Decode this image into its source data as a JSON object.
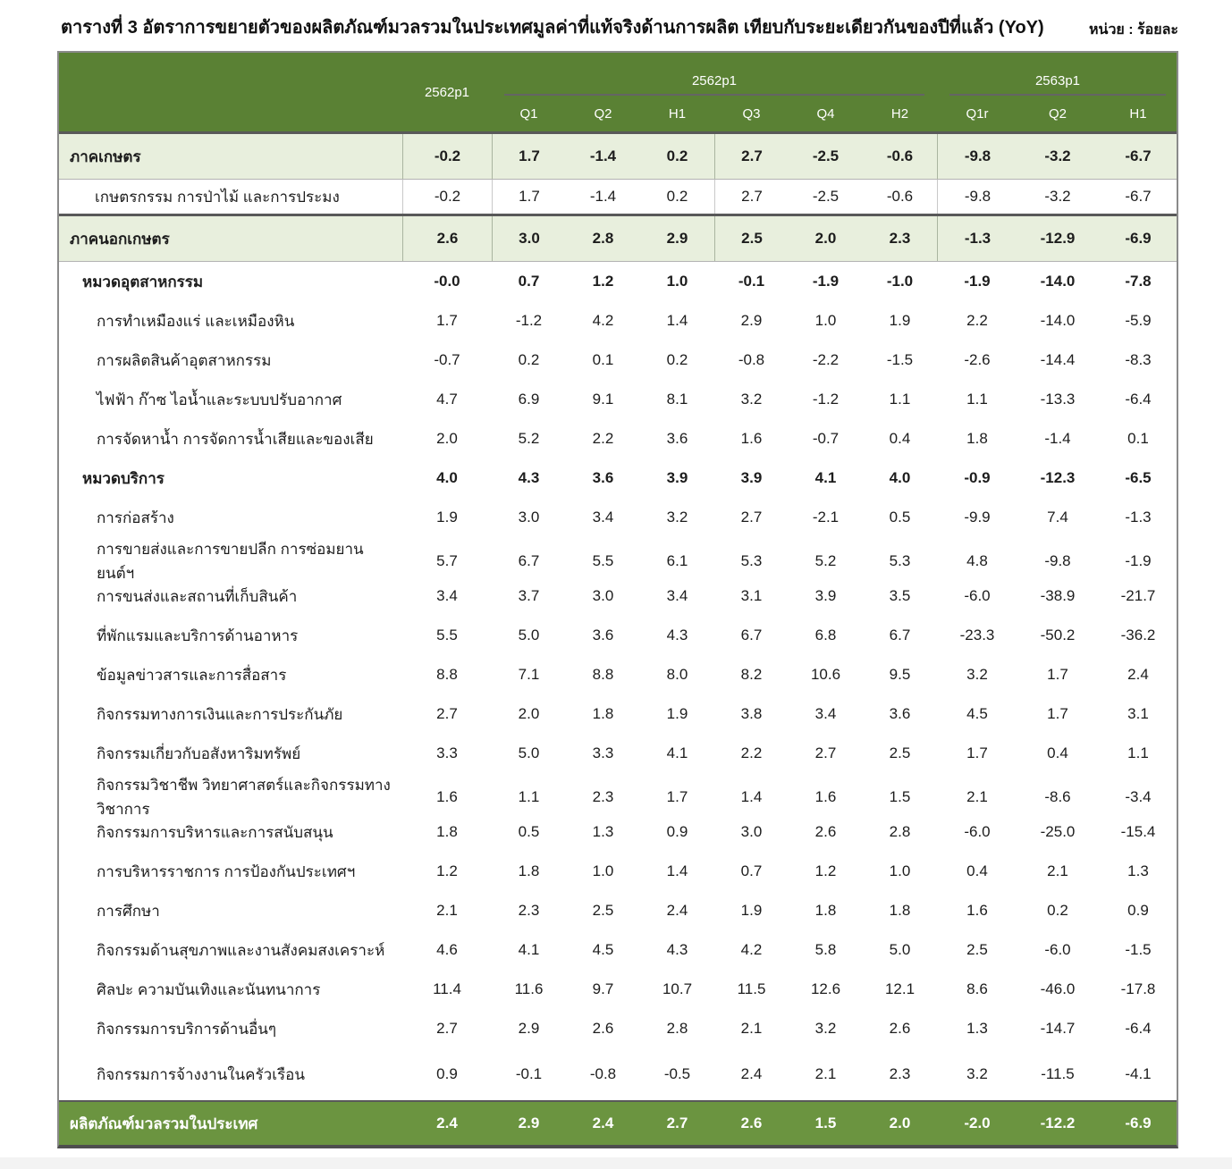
{
  "page": {
    "title": "ตารางที่ 3 อัตราการขยายตัวของผลิตภัณฑ์มวลรวมในประเทศมูลค่าที่แท้จริงด้านการผลิต เทียบกับระยะเดียวกันของปีที่แล้ว (YoY)",
    "unit_label": "หน่วย : ร้อยละ"
  },
  "table": {
    "header": {
      "annual_col": "2562p1",
      "groups": [
        {
          "label": "2562p1",
          "cols": [
            "Q1",
            "Q2",
            "H1",
            "Q3",
            "Q4",
            "H2"
          ]
        },
        {
          "label": "2563p1",
          "cols": [
            "Q1r",
            "Q2",
            "H1"
          ]
        }
      ]
    },
    "rows": [
      {
        "label": "ภาคเกษตร",
        "level": "section",
        "values": [
          "-0.2",
          "1.7",
          "-1.4",
          "0.2",
          "2.7",
          "-2.5",
          "-0.6",
          "-9.8",
          "-3.2",
          "-6.7"
        ]
      },
      {
        "label": "เกษตรกรรม การป่าไม้ และการประมง",
        "level": "sub",
        "values": [
          "-0.2",
          "1.7",
          "-1.4",
          "0.2",
          "2.7",
          "-2.5",
          "-0.6",
          "-9.8",
          "-3.2",
          "-6.7"
        ]
      },
      {
        "label": "ภาคนอกเกษตร",
        "level": "section",
        "values": [
          "2.6",
          "3.0",
          "2.8",
          "2.9",
          "2.5",
          "2.0",
          "2.3",
          "-1.3",
          "-12.9",
          "-6.9"
        ]
      },
      {
        "label": "หมวดอุตสาหกรรม",
        "level": "group",
        "values": [
          "-0.0",
          "0.7",
          "1.2",
          "1.0",
          "-0.1",
          "-1.9",
          "-1.0",
          "-1.9",
          "-14.0",
          "-7.8"
        ]
      },
      {
        "label": "การทำเหมืองแร่ และเหมืองหิน",
        "level": "leaf",
        "values": [
          "1.7",
          "-1.2",
          "4.2",
          "1.4",
          "2.9",
          "1.0",
          "1.9",
          "2.2",
          "-14.0",
          "-5.9"
        ]
      },
      {
        "label": "การผลิตสินค้าอุตสาหกรรม",
        "level": "leaf",
        "values": [
          "-0.7",
          "0.2",
          "0.1",
          "0.2",
          "-0.8",
          "-2.2",
          "-1.5",
          "-2.6",
          "-14.4",
          "-8.3"
        ]
      },
      {
        "label": "ไฟฟ้า ก๊าซ ไอน้ำและระบบปรับอากาศ",
        "level": "leaf",
        "values": [
          "4.7",
          "6.9",
          "9.1",
          "8.1",
          "3.2",
          "-1.2",
          "1.1",
          "1.1",
          "-13.3",
          "-6.4"
        ]
      },
      {
        "label": "การจัดหาน้ำ การจัดการน้ำเสียและของเสีย",
        "level": "leaf",
        "values": [
          "2.0",
          "5.2",
          "2.2",
          "3.6",
          "1.6",
          "-0.7",
          "0.4",
          "1.8",
          "-1.4",
          "0.1"
        ]
      },
      {
        "label": "หมวดบริการ",
        "level": "group",
        "values": [
          "4.0",
          "4.3",
          "3.6",
          "3.9",
          "3.9",
          "4.1",
          "4.0",
          "-0.9",
          "-12.3",
          "-6.5"
        ]
      },
      {
        "label": "การก่อสร้าง",
        "level": "leaf",
        "values": [
          "1.9",
          "3.0",
          "3.4",
          "3.2",
          "2.7",
          "-2.1",
          "0.5",
          "-9.9",
          "7.4",
          "-1.3"
        ]
      },
      {
        "label": "การขายส่งและการขายปลีก การซ่อมยานยนต์ฯ",
        "level": "leaf",
        "values": [
          "5.7",
          "6.7",
          "5.5",
          "6.1",
          "5.3",
          "5.2",
          "5.3",
          "4.8",
          "-9.8",
          "-1.9"
        ]
      },
      {
        "label": "การขนส่งและสถานที่เก็บสินค้า",
        "level": "leaf",
        "values": [
          "3.4",
          "3.7",
          "3.0",
          "3.4",
          "3.1",
          "3.9",
          "3.5",
          "-6.0",
          "-38.9",
          "-21.7"
        ]
      },
      {
        "label": "ที่พักแรมและบริการด้านอาหาร",
        "level": "leaf",
        "values": [
          "5.5",
          "5.0",
          "3.6",
          "4.3",
          "6.7",
          "6.8",
          "6.7",
          "-23.3",
          "-50.2",
          "-36.2"
        ]
      },
      {
        "label": "ข้อมูลข่าวสารและการสื่อสาร",
        "level": "leaf",
        "values": [
          "8.8",
          "7.1",
          "8.8",
          "8.0",
          "8.2",
          "10.6",
          "9.5",
          "3.2",
          "1.7",
          "2.4"
        ]
      },
      {
        "label": "กิจกรรมทางการเงินและการประกันภัย",
        "level": "leaf",
        "values": [
          "2.7",
          "2.0",
          "1.8",
          "1.9",
          "3.8",
          "3.4",
          "3.6",
          "4.5",
          "1.7",
          "3.1"
        ]
      },
      {
        "label": "กิจกรรมเกี่ยวกับอสังหาริมทรัพย์",
        "level": "leaf",
        "values": [
          "3.3",
          "5.0",
          "3.3",
          "4.1",
          "2.2",
          "2.7",
          "2.5",
          "1.7",
          "0.4",
          "1.1"
        ]
      },
      {
        "label": "กิจกรรมวิชาชีพ วิทยาศาสตร์และกิจกรรมทางวิชาการ",
        "level": "leaf",
        "values": [
          "1.6",
          "1.1",
          "2.3",
          "1.7",
          "1.4",
          "1.6",
          "1.5",
          "2.1",
          "-8.6",
          "-3.4"
        ]
      },
      {
        "label": "กิจกรรมการบริหารและการสนับสนุน",
        "level": "leaf",
        "values": [
          "1.8",
          "0.5",
          "1.3",
          "0.9",
          "3.0",
          "2.6",
          "2.8",
          "-6.0",
          "-25.0",
          "-15.4"
        ]
      },
      {
        "label": "การบริหารราชการ การป้องกันประเทศฯ",
        "level": "leaf",
        "values": [
          "1.2",
          "1.8",
          "1.0",
          "1.4",
          "0.7",
          "1.2",
          "1.0",
          "0.4",
          "2.1",
          "1.3"
        ]
      },
      {
        "label": "การศึกษา",
        "level": "leaf",
        "values": [
          "2.1",
          "2.3",
          "2.5",
          "2.4",
          "1.9",
          "1.8",
          "1.8",
          "1.6",
          "0.2",
          "0.9"
        ]
      },
      {
        "label": "กิจกรรมด้านสุขภาพและงานสังคมสงเคราะห์",
        "level": "leaf",
        "values": [
          "4.6",
          "4.1",
          "4.5",
          "4.3",
          "4.2",
          "5.8",
          "5.0",
          "2.5",
          "-6.0",
          "-1.5"
        ]
      },
      {
        "label": "ศิลปะ ความบันเทิงและนันทนาการ",
        "level": "leaf",
        "values": [
          "11.4",
          "11.6",
          "9.7",
          "10.7",
          "11.5",
          "12.6",
          "12.1",
          "8.6",
          "-46.0",
          "-17.8"
        ]
      },
      {
        "label": "กิจกรรมการบริการด้านอื่นๆ",
        "level": "leaf",
        "values": [
          "2.7",
          "2.9",
          "2.6",
          "2.8",
          "2.1",
          "3.2",
          "2.6",
          "1.3",
          "-14.7",
          "-6.4"
        ]
      },
      {
        "label": "กิจกรรมการจ้างงานในครัวเรือน",
        "level": "leaf",
        "values": [
          "0.9",
          "-0.1",
          "-0.8",
          "-0.5",
          "2.4",
          "2.1",
          "2.3",
          "3.2",
          "-11.5",
          "-4.1"
        ]
      },
      {
        "label": "ผลิตภัณฑ์มวลรวมในประเทศ",
        "level": "total",
        "values": [
          "2.4",
          "2.9",
          "2.4",
          "2.7",
          "2.6",
          "1.5",
          "2.0",
          "-2.0",
          "-12.2",
          "-6.9"
        ]
      }
    ],
    "colors": {
      "header_green": "#5a8134",
      "total_row_green": "#6b9440",
      "section_band_green": "#e8efdd",
      "dark_rule": "#595959"
    }
  }
}
